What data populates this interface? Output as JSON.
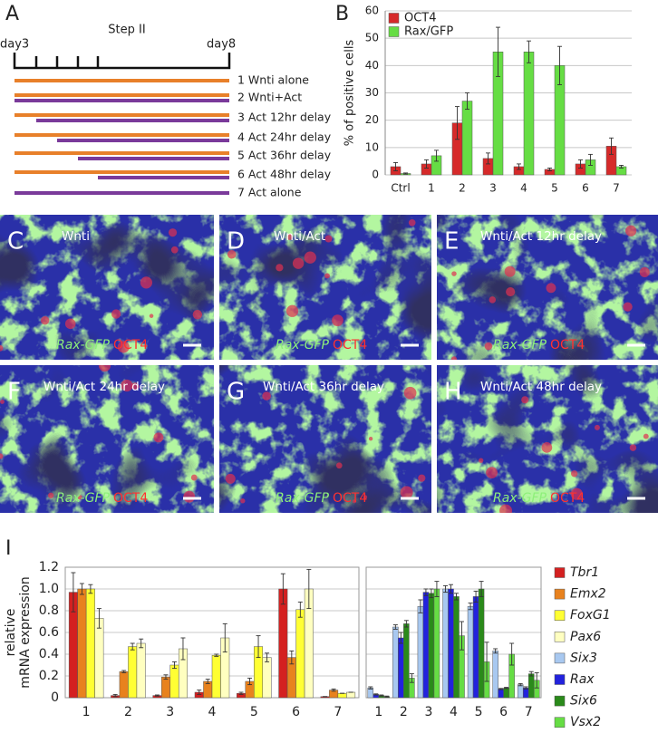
{
  "diagram": {
    "label": "A",
    "title": "Step II",
    "start": "day3",
    "end": "day8",
    "rows": [
      "1 Wnti alone",
      "2 Wnti+Act",
      "3 Act 12hr delay",
      "4 Act 24hr delay",
      "5 Act 36hr delay",
      "6 Act 48hr delay",
      "7 Act alone"
    ]
  },
  "images": [
    {
      "label": "C",
      "title": "Wnti",
      "marker": "Rax-GFP",
      "stain": "OCT4"
    },
    {
      "label": "D",
      "title": "Wnti/Act",
      "marker": "Rax-GFP",
      "stain": "OCT4"
    },
    {
      "label": "E",
      "title": "Wnti/Act 12hr delay",
      "marker": "Rax-GFP",
      "stain": "OCT4"
    },
    {
      "label": "F",
      "title": "Wnti/Act 24hr delay",
      "marker": "Rax-GFP",
      "stain": "OCT4"
    },
    {
      "label": "G",
      "title": "Wnti/Act 36hr delay",
      "marker": "Rax-GFP",
      "stain": "OCT4"
    },
    {
      "label": "H",
      "title": "Wnti/Act 48hr delay",
      "marker": "Rax-GFP",
      "stain": "OCT4"
    }
  ],
  "chart_data": [
    {
      "type": "bar",
      "label": "B",
      "ylabel": "% of positive cells",
      "categories": [
        "Ctrl",
        "1",
        "2",
        "3",
        "4",
        "5",
        "6",
        "7"
      ],
      "series": [
        {
          "name": "OCT4",
          "color": "#d62a2a",
          "values": [
            3,
            4,
            19,
            6,
            3,
            2,
            4,
            10.5
          ],
          "errors": [
            1.5,
            1.5,
            6,
            2,
            1,
            0.5,
            1.5,
            3
          ]
        },
        {
          "name": "Rax/GFP",
          "color": "#66dd44",
          "values": [
            0.5,
            7,
            27,
            45,
            45,
            40,
            5.5,
            3
          ],
          "errors": [
            0.2,
            2,
            3,
            9,
            4,
            7,
            2,
            0.5
          ]
        }
      ],
      "ylim": [
        0,
        60
      ],
      "yticks": [
        0,
        10,
        20,
        30,
        40,
        50,
        60
      ],
      "grid": true,
      "legend": "top-left"
    },
    {
      "type": "bar",
      "label": "I",
      "ylabel": [
        "relative",
        "mRNA expression"
      ],
      "categories": [
        "1",
        "2",
        "3",
        "4",
        "5",
        "6",
        "7"
      ],
      "series": [
        {
          "name": "Tbr1",
          "color": "#d42020",
          "values": [
            0.97,
            0.02,
            0.02,
            0.05,
            0.04,
            1.0,
            0.01
          ],
          "errors": [
            0.18,
            0.01,
            0.005,
            0.02,
            0.01,
            0.14,
            0
          ]
        },
        {
          "name": "Emx2",
          "color": "#e8821e",
          "values": [
            1.0,
            0.24,
            0.19,
            0.15,
            0.15,
            0.37,
            0.07
          ],
          "errors": [
            0.05,
            0.01,
            0.02,
            0.02,
            0.03,
            0.06,
            0.01
          ]
        },
        {
          "name": "FoxG1",
          "color": "#ffff33",
          "values": [
            1.0,
            0.47,
            0.3,
            0.39,
            0.47,
            0.81,
            0.04
          ],
          "errors": [
            0.04,
            0.03,
            0.03,
            0.01,
            0.1,
            0.07,
            0
          ]
        },
        {
          "name": "Pax6",
          "color": "#ffffc0",
          "values": [
            0.73,
            0.5,
            0.45,
            0.55,
            0.37,
            1.0,
            0.05
          ],
          "errors": [
            0.09,
            0.04,
            0.1,
            0.13,
            0.04,
            0.18,
            0
          ]
        }
      ],
      "ylim": [
        0,
        1.2
      ],
      "yticks": [
        0,
        0.2,
        0.4,
        0.6,
        0.8,
        {
          "value": 1,
          "label": "1.0"
        },
        1.2
      ],
      "grid": true,
      "legend": "right"
    },
    {
      "type": "bar",
      "categories": [
        "1",
        "2",
        "3",
        "4",
        "5",
        "6",
        "7"
      ],
      "series": [
        {
          "name": "Six3",
          "color": "#a8c8f0",
          "values": [
            0.09,
            0.65,
            0.84,
            1.0,
            0.84,
            0.43,
            0.12
          ],
          "errors": [
            0.01,
            0.02,
            0.06,
            0.03,
            0.03,
            0.02,
            0.01
          ]
        },
        {
          "name": "Rax",
          "color": "#2222dd",
          "values": [
            0.03,
            0.55,
            0.97,
            1.0,
            0.93,
            0.08,
            0.09
          ],
          "errors": [
            0.005,
            0.05,
            0.03,
            0.04,
            0.05,
            0.005,
            0.01
          ]
        },
        {
          "name": "Six6",
          "color": "#2a8a1a",
          "values": [
            0.02,
            0.68,
            0.96,
            0.93,
            1.0,
            0.09,
            0.22
          ],
          "errors": [
            0.005,
            0.03,
            0.04,
            0.03,
            0.07,
            0.005,
            0.02
          ]
        },
        {
          "name": "Vsx2",
          "color": "#66dd44",
          "values": [
            0.01,
            0.18,
            1.0,
            0.57,
            0.33,
            0.4,
            0.16
          ],
          "errors": [
            0.005,
            0.04,
            0.07,
            0.13,
            0.18,
            0.1,
            0.07
          ]
        }
      ],
      "ylim": [
        0,
        1.2
      ],
      "grid": true,
      "legend": "right"
    }
  ]
}
